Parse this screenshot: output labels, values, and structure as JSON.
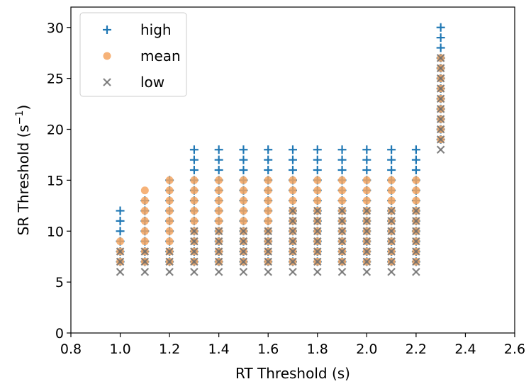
{
  "chart_data": {
    "type": "scatter",
    "xlabel": "RT Threshold (s)",
    "ylabel_prefix": "SR Threshold (s",
    "ylabel_sup": "−1",
    "ylabel_suffix": ")",
    "xlim": [
      0.8,
      2.6
    ],
    "ylim": [
      0,
      32
    ],
    "xticks": [
      0.8,
      1.0,
      1.2,
      1.4,
      1.6,
      1.8,
      2.0,
      2.2,
      2.4,
      2.6
    ],
    "xtick_labels": [
      "0.8",
      "1.0",
      "1.2",
      "1.4",
      "1.6",
      "1.8",
      "2.0",
      "2.2",
      "2.4",
      "2.6"
    ],
    "yticks": [
      0,
      5,
      10,
      15,
      20,
      25,
      30
    ],
    "ytick_labels": [
      "0",
      "5",
      "10",
      "15",
      "20",
      "25",
      "30"
    ],
    "legend_position": "top-left",
    "grid": false,
    "series": [
      {
        "name": "high",
        "marker": "plus",
        "color": "#1f77b4",
        "points": [
          {
            "x": 1.0,
            "y_values": [
              7,
              8,
              9,
              10,
              11,
              12
            ]
          },
          {
            "x": 1.1,
            "y_values": [
              7,
              8,
              9,
              10,
              11,
              12,
              13
            ]
          },
          {
            "x": 1.2,
            "y_values": [
              7,
              8,
              9,
              10,
              11,
              12,
              13,
              14,
              15
            ]
          },
          {
            "x": 1.3,
            "y_values": [
              7,
              8,
              9,
              10,
              11,
              12,
              13,
              14,
              15,
              16,
              17,
              18
            ]
          },
          {
            "x": 1.4,
            "y_values": [
              7,
              8,
              9,
              10,
              11,
              12,
              13,
              14,
              15,
              16,
              17,
              18
            ]
          },
          {
            "x": 1.5,
            "y_values": [
              7,
              8,
              9,
              10,
              11,
              12,
              13,
              14,
              15,
              16,
              17,
              18
            ]
          },
          {
            "x": 1.6,
            "y_values": [
              7,
              8,
              9,
              10,
              11,
              12,
              13,
              14,
              15,
              16,
              17,
              18
            ]
          },
          {
            "x": 1.7,
            "y_values": [
              7,
              8,
              9,
              10,
              11,
              12,
              13,
              14,
              15,
              16,
              17,
              18
            ]
          },
          {
            "x": 1.8,
            "y_values": [
              7,
              8,
              9,
              10,
              11,
              12,
              13,
              14,
              15,
              16,
              17,
              18
            ]
          },
          {
            "x": 1.9,
            "y_values": [
              7,
              8,
              9,
              10,
              11,
              12,
              13,
              14,
              15,
              16,
              17,
              18
            ]
          },
          {
            "x": 2.0,
            "y_values": [
              7,
              8,
              9,
              10,
              11,
              12,
              13,
              14,
              15,
              16,
              17,
              18
            ]
          },
          {
            "x": 2.1,
            "y_values": [
              7,
              8,
              9,
              10,
              11,
              12,
              13,
              14,
              15,
              16,
              17,
              18
            ]
          },
          {
            "x": 2.2,
            "y_values": [
              7,
              8,
              9,
              10,
              11,
              12,
              13,
              14,
              15,
              16,
              17,
              18
            ]
          },
          {
            "x": 2.3,
            "y_values": [
              19,
              20,
              21,
              22,
              23,
              24,
              25,
              26,
              27,
              28,
              29,
              30
            ]
          }
        ]
      },
      {
        "name": "mean",
        "marker": "circle",
        "color": "#f5a460",
        "points": [
          {
            "x": 1.0,
            "y_values": [
              7,
              8,
              9
            ]
          },
          {
            "x": 1.1,
            "y_values": [
              7,
              8,
              9,
              10,
              11,
              12,
              13,
              14
            ]
          },
          {
            "x": 1.2,
            "y_values": [
              7,
              8,
              9,
              10,
              11,
              12,
              13,
              14,
              15
            ]
          },
          {
            "x": 1.3,
            "y_values": [
              7,
              8,
              9,
              10,
              11,
              12,
              13,
              14,
              15
            ]
          },
          {
            "x": 1.4,
            "y_values": [
              7,
              8,
              9,
              10,
              11,
              12,
              13,
              14,
              15
            ]
          },
          {
            "x": 1.5,
            "y_values": [
              7,
              8,
              9,
              10,
              11,
              12,
              13,
              14,
              15
            ]
          },
          {
            "x": 1.6,
            "y_values": [
              7,
              8,
              9,
              10,
              11,
              12,
              13,
              14,
              15
            ]
          },
          {
            "x": 1.7,
            "y_values": [
              7,
              8,
              9,
              10,
              11,
              12,
              13,
              14,
              15
            ]
          },
          {
            "x": 1.8,
            "y_values": [
              7,
              8,
              9,
              10,
              11,
              12,
              13,
              14,
              15
            ]
          },
          {
            "x": 1.9,
            "y_values": [
              7,
              8,
              9,
              10,
              11,
              12,
              13,
              14,
              15
            ]
          },
          {
            "x": 2.0,
            "y_values": [
              7,
              8,
              9,
              10,
              11,
              12,
              13,
              14,
              15
            ]
          },
          {
            "x": 2.1,
            "y_values": [
              7,
              8,
              9,
              10,
              11,
              12,
              13,
              14,
              15
            ]
          },
          {
            "x": 2.2,
            "y_values": [
              7,
              8,
              9,
              10,
              11,
              12,
              13,
              14,
              15
            ]
          },
          {
            "x": 2.3,
            "y_values": [
              19,
              20,
              21,
              22,
              23,
              24,
              25,
              26,
              27
            ]
          }
        ]
      },
      {
        "name": "low",
        "marker": "x",
        "color": "#6e6e6e",
        "points": [
          {
            "x": 1.0,
            "y_values": [
              6,
              7,
              8
            ]
          },
          {
            "x": 1.1,
            "y_values": [
              6,
              7,
              8
            ]
          },
          {
            "x": 1.2,
            "y_values": [
              6,
              7,
              8
            ]
          },
          {
            "x": 1.3,
            "y_values": [
              6,
              7,
              8,
              9,
              10
            ]
          },
          {
            "x": 1.4,
            "y_values": [
              6,
              7,
              8,
              9,
              10
            ]
          },
          {
            "x": 1.5,
            "y_values": [
              6,
              7,
              8,
              9,
              10
            ]
          },
          {
            "x": 1.6,
            "y_values": [
              6,
              7,
              8,
              9,
              10
            ]
          },
          {
            "x": 1.7,
            "y_values": [
              6,
              7,
              8,
              9,
              10,
              11,
              12
            ]
          },
          {
            "x": 1.8,
            "y_values": [
              6,
              7,
              8,
              9,
              10,
              11,
              12
            ]
          },
          {
            "x": 1.9,
            "y_values": [
              6,
              7,
              8,
              9,
              10,
              11,
              12
            ]
          },
          {
            "x": 2.0,
            "y_values": [
              6,
              7,
              8,
              9,
              10,
              11,
              12
            ]
          },
          {
            "x": 2.1,
            "y_values": [
              6,
              7,
              8,
              9,
              10,
              11,
              12
            ]
          },
          {
            "x": 2.2,
            "y_values": [
              6,
              7,
              8,
              9,
              10,
              11,
              12
            ]
          },
          {
            "x": 2.3,
            "y_values": [
              18,
              19,
              20,
              21,
              22,
              23,
              24,
              25,
              26,
              27
            ]
          }
        ]
      }
    ]
  }
}
